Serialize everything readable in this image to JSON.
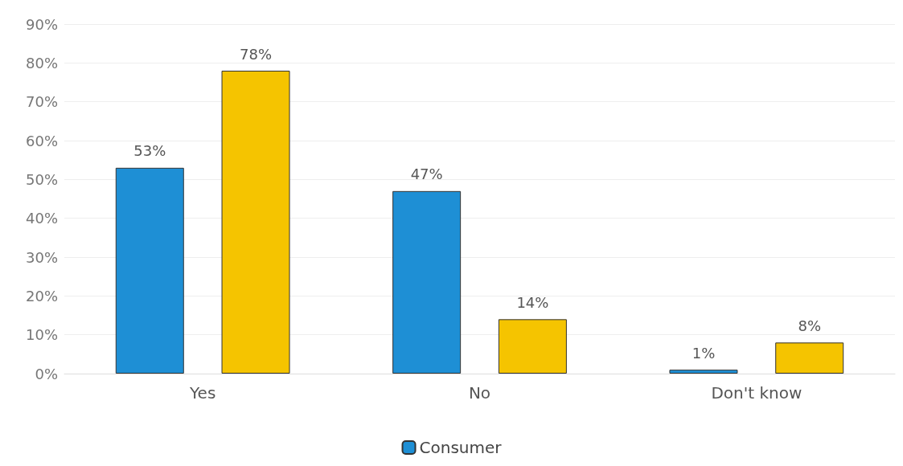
{
  "chart_data": {
    "type": "bar",
    "categories": [
      "Yes",
      "No",
      "Don't know"
    ],
    "series": [
      {
        "name": "Consumer",
        "color": "#1e8fd5",
        "values": [
          53,
          47,
          1
        ],
        "value_labels": [
          "53%",
          "47%",
          "1%"
        ]
      },
      {
        "color": "#f5c400",
        "values": [
          78,
          14,
          8
        ],
        "value_labels": [
          "78%",
          "14%",
          "8%"
        ]
      }
    ],
    "ylim": [
      0,
      90
    ],
    "yticks": [
      {
        "value": 0,
        "label": "0%"
      },
      {
        "value": 10,
        "label": "10%"
      },
      {
        "value": 20,
        "label": "20%"
      },
      {
        "value": 30,
        "label": "30%"
      },
      {
        "value": 40,
        "label": "40%"
      },
      {
        "value": 50,
        "label": "50%"
      },
      {
        "value": 60,
        "label": "60%"
      },
      {
        "value": 70,
        "label": "70%"
      },
      {
        "value": 80,
        "label": "80%"
      },
      {
        "value": 90,
        "label": "90%"
      }
    ],
    "grid": "y",
    "legend": "bottom"
  }
}
